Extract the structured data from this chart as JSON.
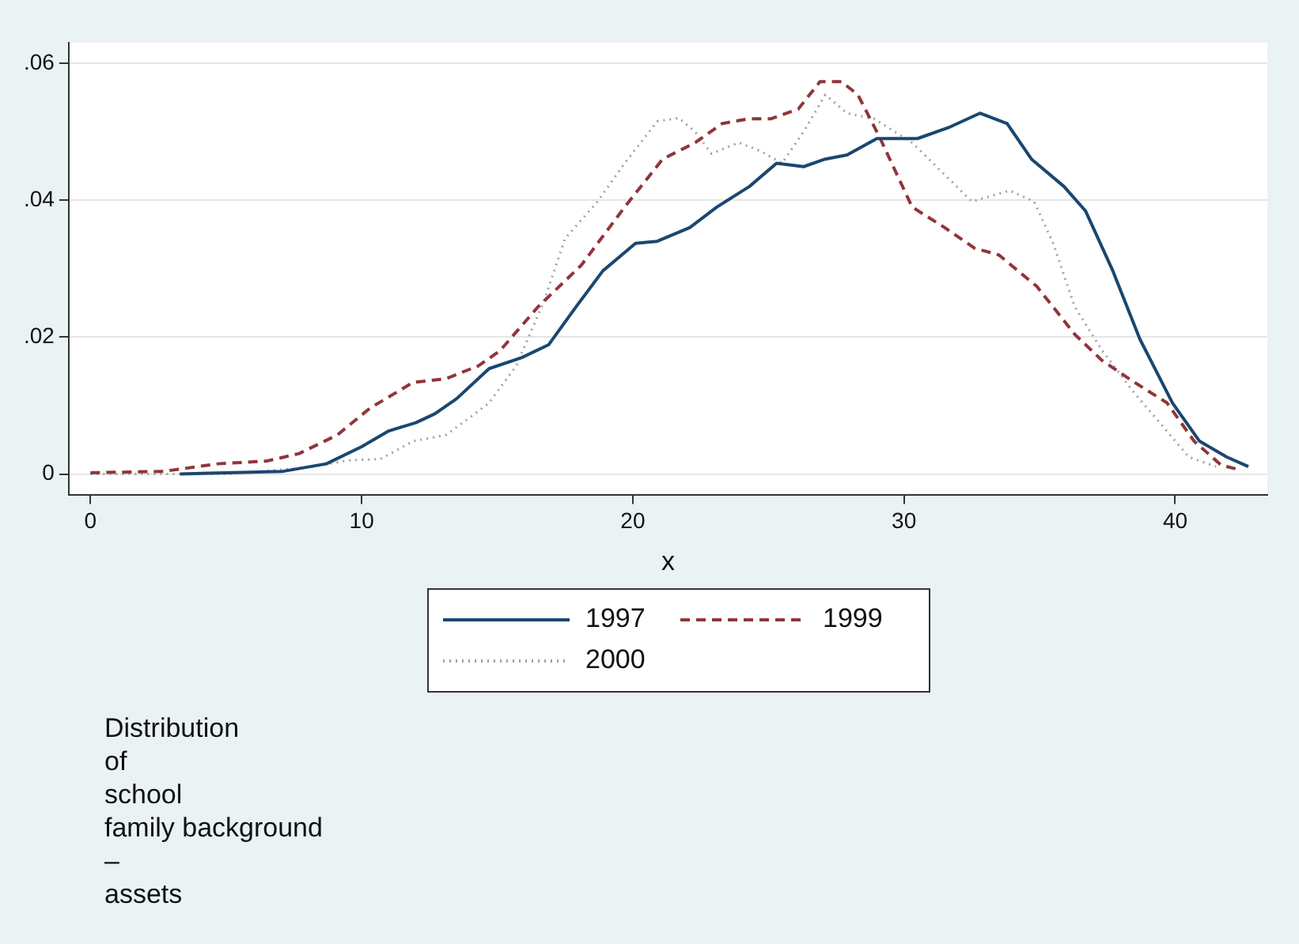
{
  "chart_data": {
    "type": "line",
    "xlabel": "x",
    "xlim": [
      -0.8,
      43.4
    ],
    "xticks": [
      0,
      10,
      20,
      30,
      40
    ],
    "ylim": [
      -0.003,
      0.063
    ],
    "yticks": [
      0,
      {
        "value": 0.02,
        "label": ".02"
      },
      {
        "value": 0.04,
        "label": ".04"
      },
      {
        "value": 0.06,
        "label": ".06"
      }
    ],
    "grid": "y",
    "legend": "bottom",
    "marker": "none",
    "annotations": [
      "Distribution\nof\nschool\nfamily background\n–\nassets"
    ],
    "series": [
      {
        "name": "1997",
        "color": "#1a476f",
        "line_style": "solid",
        "x": [
          3.3,
          5,
          7.1,
          8.7,
          10,
          11,
          12,
          12.7,
          13.5,
          14.7,
          15.9,
          16.9,
          17.9,
          18.9,
          20.1,
          20.9,
          22.1,
          23.1,
          24.3,
          25.3,
          26.3,
          27.1,
          27.9,
          29,
          30.5,
          31.7,
          32.8,
          33.8,
          34.7,
          35.9,
          36.7,
          37.7,
          38.7,
          39.9,
          40.9,
          41.9,
          42.7
        ],
        "values": [
          0,
          0.0002,
          0.0004,
          0.0015,
          0.004,
          0.0063,
          0.0075,
          0.0088,
          0.011,
          0.0154,
          0.017,
          0.0189,
          0.0244,
          0.0297,
          0.0337,
          0.034,
          0.036,
          0.039,
          0.042,
          0.0454,
          0.0449,
          0.046,
          0.0466,
          0.049,
          0.049,
          0.0507,
          0.0527,
          0.0512,
          0.046,
          0.042,
          0.0384,
          0.0297,
          0.0197,
          0.0104,
          0.0048,
          0.0025,
          0.0011
        ]
      },
      {
        "name": "1999",
        "color": "#90353b",
        "line_style": "dashed",
        "x": [
          0,
          2.7,
          4.7,
          6.5,
          7.7,
          9.1,
          10.3,
          11.9,
          13.1,
          14.3,
          15.1,
          16.5,
          18.1,
          19.7,
          21.1,
          22.3,
          23.3,
          24.3,
          25.1,
          26.1,
          26.9,
          27.7,
          28.3,
          29.1,
          30.3,
          31.5,
          32.6,
          33.5,
          34.9,
          36.3,
          37.3,
          38.5,
          39.7,
          40.7,
          41.7,
          42.4
        ],
        "values": [
          0.0002,
          0.0004,
          0.0015,
          0.0019,
          0.003,
          0.0057,
          0.0096,
          0.0134,
          0.0139,
          0.0158,
          0.018,
          0.0244,
          0.0305,
          0.039,
          0.046,
          0.0484,
          0.0512,
          0.0519,
          0.0519,
          0.0533,
          0.0573,
          0.0573,
          0.0554,
          0.0492,
          0.039,
          0.036,
          0.033,
          0.032,
          0.0274,
          0.0204,
          0.0166,
          0.0134,
          0.0104,
          0.0048,
          0.0013,
          0.0006
        ]
      },
      {
        "name": "2000",
        "color": "#a0a0a0",
        "line_style": "dotted",
        "x": [
          0,
          5.1,
          8.1,
          9.5,
          10.7,
          11.9,
          13.1,
          13.9,
          14.7,
          15.7,
          16.7,
          17.5,
          18.7,
          19.7,
          20.9,
          21.7,
          22.3,
          22.9,
          23.9,
          24.7,
          25.5,
          26.3,
          27.1,
          27.9,
          28.9,
          30.3,
          31.3,
          32.5,
          33.9,
          34.8,
          35.5,
          36.3,
          37.3,
          38.5,
          39.5,
          40.5,
          41.5
        ],
        "values": [
          0,
          0,
          0.001,
          0.002,
          0.0022,
          0.0048,
          0.0057,
          0.008,
          0.0104,
          0.0158,
          0.025,
          0.0344,
          0.0398,
          0.0454,
          0.0515,
          0.052,
          0.05,
          0.0468,
          0.0484,
          0.0472,
          0.0454,
          0.05,
          0.0554,
          0.0527,
          0.0519,
          0.0484,
          0.0445,
          0.0398,
          0.0414,
          0.0398,
          0.0337,
          0.0244,
          0.0181,
          0.0118,
          0.0072,
          0.0025,
          0.0011
        ]
      }
    ]
  }
}
